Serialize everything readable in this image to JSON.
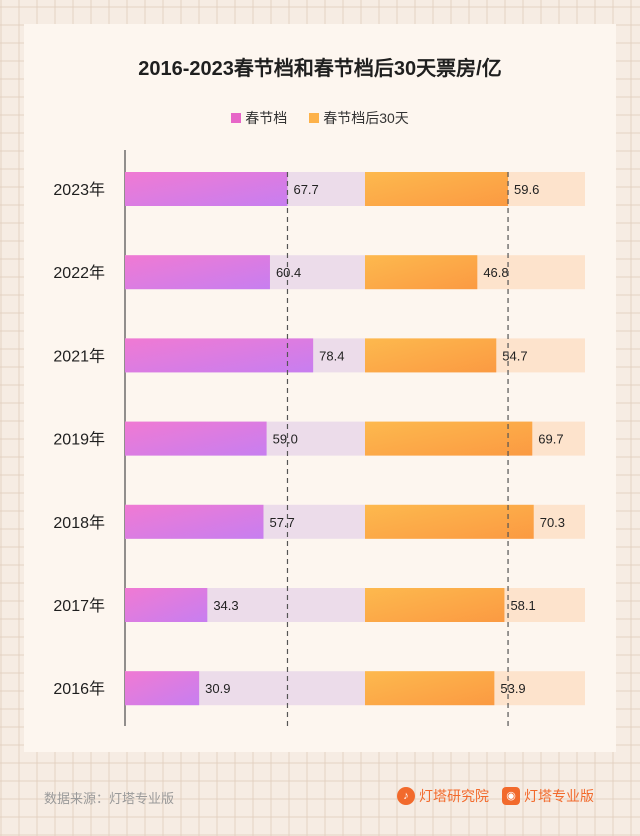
{
  "chart_data": {
    "type": "bar",
    "title": "2016-2023春节档和春节档后30天票房/亿",
    "categories": [
      "2023年",
      "2022年",
      "2021年",
      "2019年",
      "2018年",
      "2017年",
      "2016年"
    ],
    "series": [
      {
        "name": "春节档",
        "values": [
          67.7,
          60.4,
          78.4,
          59.0,
          57.7,
          34.3,
          30.9
        ],
        "labels": [
          "67.7",
          "60.4",
          "78.4",
          "59.0",
          "57.7",
          "34.3",
          "30.9"
        ],
        "color": "#e766c8"
      },
      {
        "name": "春节档后30天",
        "values": [
          59.6,
          46.8,
          54.7,
          69.7,
          70.3,
          58.1,
          53.9
        ],
        "labels": [
          "59.6",
          "46.8",
          "54.7",
          "69.7",
          "70.3",
          "58.1",
          "53.9"
        ],
        "color": "#fdb24a"
      }
    ],
    "xlim": [
      0,
      100
    ],
    "reference_lines": [
      67.7,
      59.6
    ],
    "legend": "top-center"
  },
  "colors": {
    "pink_start": "#f07ad3",
    "pink_end": "#c77ef0",
    "pink_track": "#ecdcea",
    "orange_start": "#fdb94e",
    "orange_end": "#fb9a42",
    "orange_track": "#fde3cc"
  },
  "footer": {
    "source": "数据来源：灯塔专业版",
    "brand1": "灯塔研究院",
    "brand2": "灯塔专业版"
  }
}
